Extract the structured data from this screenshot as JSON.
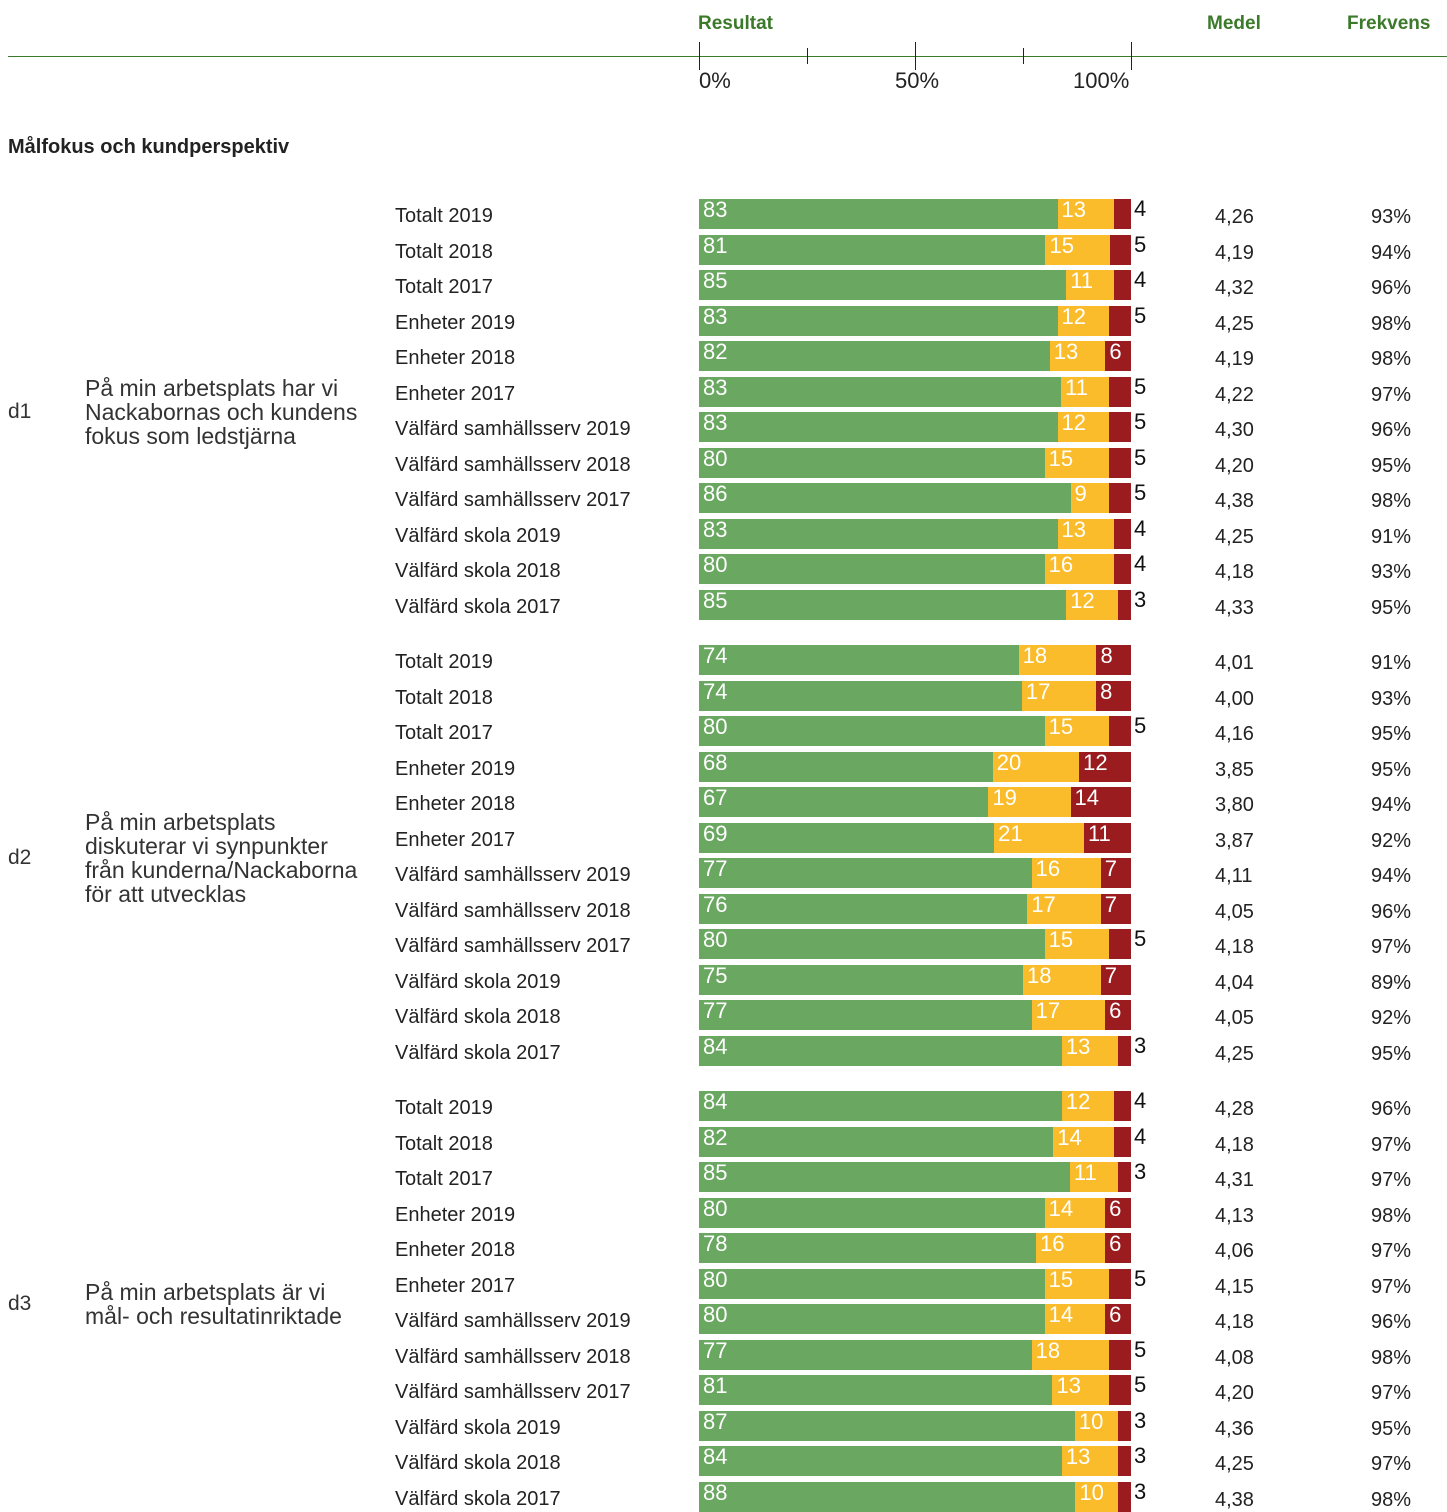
{
  "header": {
    "resultat": "Resultat",
    "medel": "Medel",
    "frekvens": "Frekvens",
    "ticks": [
      "0%",
      "50%",
      "100%"
    ]
  },
  "section_title": "Målfokus och kundperspektiv",
  "colors": {
    "positive": "#6aa761",
    "neutral": "#fbbc2b",
    "negative": "#9b1c1f",
    "accent": "#3b7a2a"
  },
  "chart_data": {
    "type": "bar",
    "stacked": true,
    "orientation": "horizontal",
    "xlim": [
      0,
      100
    ],
    "series_names": [
      "positive",
      "neutral",
      "negative"
    ],
    "groups": [
      {
        "code": "d1",
        "question": "På min arbetsplats har vi Nackabornas och kundens fokus som ledstjärna",
        "rows": [
          {
            "label": "Totalt 2019",
            "values": [
              83,
              13,
              4
            ],
            "medel": "4,26",
            "frekvens": "93%"
          },
          {
            "label": "Totalt 2018",
            "values": [
              81,
              15,
              5
            ],
            "medel": "4,19",
            "frekvens": "94%"
          },
          {
            "label": "Totalt 2017",
            "values": [
              85,
              11,
              4
            ],
            "medel": "4,32",
            "frekvens": "96%"
          },
          {
            "label": "Enheter 2019",
            "values": [
              83,
              12,
              5
            ],
            "medel": "4,25",
            "frekvens": "98%"
          },
          {
            "label": "Enheter 2018",
            "values": [
              82,
              13,
              6
            ],
            "medel": "4,19",
            "frekvens": "98%"
          },
          {
            "label": "Enheter 2017",
            "values": [
              83,
              11,
              5
            ],
            "medel": "4,22",
            "frekvens": "97%"
          },
          {
            "label": "Välfärd samhällsserv 2019",
            "values": [
              83,
              12,
              5
            ],
            "medel": "4,30",
            "frekvens": "96%"
          },
          {
            "label": "Välfärd samhällsserv 2018",
            "values": [
              80,
              15,
              5
            ],
            "medel": "4,20",
            "frekvens": "95%"
          },
          {
            "label": "Välfärd samhällsserv 2017",
            "values": [
              86,
              9,
              5
            ],
            "medel": "4,38",
            "frekvens": "98%"
          },
          {
            "label": "Välfärd skola 2019",
            "values": [
              83,
              13,
              4
            ],
            "medel": "4,25",
            "frekvens": "91%"
          },
          {
            "label": "Välfärd skola 2018",
            "values": [
              80,
              16,
              4
            ],
            "medel": "4,18",
            "frekvens": "93%"
          },
          {
            "label": "Välfärd skola 2017",
            "values": [
              85,
              12,
              3
            ],
            "medel": "4,33",
            "frekvens": "95%"
          }
        ]
      },
      {
        "code": "d2",
        "question": "På min arbetsplats diskuterar vi synpunkter från kunderna/Nackaborna för att utvecklas",
        "rows": [
          {
            "label": "Totalt 2019",
            "values": [
              74,
              18,
              8
            ],
            "medel": "4,01",
            "frekvens": "91%"
          },
          {
            "label": "Totalt 2018",
            "values": [
              74,
              17,
              8
            ],
            "medel": "4,00",
            "frekvens": "93%"
          },
          {
            "label": "Totalt 2017",
            "values": [
              80,
              15,
              5
            ],
            "medel": "4,16",
            "frekvens": "95%"
          },
          {
            "label": "Enheter 2019",
            "values": [
              68,
              20,
              12
            ],
            "medel": "3,85",
            "frekvens": "95%"
          },
          {
            "label": "Enheter 2018",
            "values": [
              67,
              19,
              14
            ],
            "medel": "3,80",
            "frekvens": "94%"
          },
          {
            "label": "Enheter 2017",
            "values": [
              69,
              21,
              11
            ],
            "medel": "3,87",
            "frekvens": "92%"
          },
          {
            "label": "Välfärd samhällsserv 2019",
            "values": [
              77,
              16,
              7
            ],
            "medel": "4,11",
            "frekvens": "94%"
          },
          {
            "label": "Välfärd samhällsserv 2018",
            "values": [
              76,
              17,
              7
            ],
            "medel": "4,05",
            "frekvens": "96%"
          },
          {
            "label": "Välfärd samhällsserv 2017",
            "values": [
              80,
              15,
              5
            ],
            "medel": "4,18",
            "frekvens": "97%"
          },
          {
            "label": "Välfärd skola 2019",
            "values": [
              75,
              18,
              7
            ],
            "medel": "4,04",
            "frekvens": "89%"
          },
          {
            "label": "Välfärd skola 2018",
            "values": [
              77,
              17,
              6
            ],
            "medel": "4,05",
            "frekvens": "92%"
          },
          {
            "label": "Välfärd skola 2017",
            "values": [
              84,
              13,
              3
            ],
            "medel": "4,25",
            "frekvens": "95%"
          }
        ]
      },
      {
        "code": "d3",
        "question": "På min arbetsplats är vi mål- och resultatinriktade",
        "rows": [
          {
            "label": "Totalt 2019",
            "values": [
              84,
              12,
              4
            ],
            "medel": "4,28",
            "frekvens": "96%"
          },
          {
            "label": "Totalt 2018",
            "values": [
              82,
              14,
              4
            ],
            "medel": "4,18",
            "frekvens": "97%"
          },
          {
            "label": "Totalt 2017",
            "values": [
              85,
              11,
              3
            ],
            "medel": "4,31",
            "frekvens": "97%"
          },
          {
            "label": "Enheter 2019",
            "values": [
              80,
              14,
              6
            ],
            "medel": "4,13",
            "frekvens": "98%"
          },
          {
            "label": "Enheter 2018",
            "values": [
              78,
              16,
              6
            ],
            "medel": "4,06",
            "frekvens": "97%"
          },
          {
            "label": "Enheter 2017",
            "values": [
              80,
              15,
              5
            ],
            "medel": "4,15",
            "frekvens": "97%"
          },
          {
            "label": "Välfärd samhällsserv 2019",
            "values": [
              80,
              14,
              6
            ],
            "medel": "4,18",
            "frekvens": "96%"
          },
          {
            "label": "Välfärd samhällsserv 2018",
            "values": [
              77,
              18,
              5
            ],
            "medel": "4,08",
            "frekvens": "98%"
          },
          {
            "label": "Välfärd samhällsserv 2017",
            "values": [
              81,
              13,
              5
            ],
            "medel": "4,20",
            "frekvens": "97%"
          },
          {
            "label": "Välfärd skola 2019",
            "values": [
              87,
              10,
              3
            ],
            "medel": "4,36",
            "frekvens": "95%"
          },
          {
            "label": "Välfärd skola 2018",
            "values": [
              84,
              13,
              3
            ],
            "medel": "4,25",
            "frekvens": "97%"
          },
          {
            "label": "Välfärd skola 2017",
            "values": [
              88,
              10,
              3
            ],
            "medel": "4,38",
            "frekvens": "98%"
          }
        ]
      }
    ]
  }
}
